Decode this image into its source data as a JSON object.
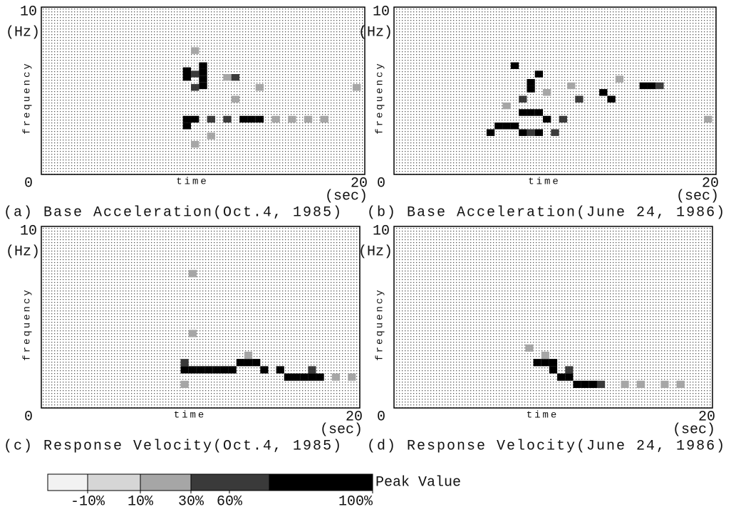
{
  "chart_data": [
    {
      "type": "heatmap",
      "caption": "(a) Base Acceleration(Oct.4, 1985)",
      "y_label": "frequency",
      "y_unit": "(Hz)",
      "x_label": "time",
      "x_unit": "(sec)",
      "xlim": [
        0,
        20
      ],
      "ylim": [
        0,
        10
      ],
      "xticks": [
        0,
        20
      ],
      "yticks": [
        10
      ],
      "x": [
        9.0,
        9.0,
        9.5,
        10.0,
        10.0,
        10.0,
        10.0,
        9.5,
        9.5,
        9.0,
        9.5,
        9.0,
        10.5,
        11.5,
        12.5,
        13.0,
        13.5,
        14.5,
        15.5,
        16.5,
        17.5,
        11.5,
        12.0,
        13.5,
        19.5,
        10.5,
        9.5,
        12.0
      ],
      "y": [
        6.2,
        5.8,
        6.0,
        6.5,
        6.1,
        5.7,
        5.3,
        5.2,
        7.4,
        3.3,
        3.3,
        2.9,
        3.3,
        3.3,
        3.3,
        3.3,
        3.3,
        3.3,
        3.3,
        3.3,
        3.3,
        5.8,
        5.8,
        5.2,
        5.2,
        2.3,
        1.8,
        4.5
      ],
      "values": [
        80,
        80,
        45,
        100,
        100,
        100,
        100,
        45,
        20,
        100,
        100,
        80,
        45,
        45,
        80,
        100,
        100,
        20,
        20,
        20,
        20,
        20,
        45,
        20,
        20,
        20,
        20,
        20
      ]
    },
    {
      "type": "heatmap",
      "caption": "(b) Base Acceleration(June 24, 1986)",
      "y_label": "frequency",
      "y_unit": "(Hz)",
      "x_label": "time",
      "x_unit": "(sec)",
      "xlim": [
        0,
        20
      ],
      "ylim": [
        0,
        10
      ],
      "xticks": [
        0,
        20
      ],
      "yticks": [
        10
      ],
      "x": [
        7.5,
        9.0,
        8.5,
        8.5,
        8.0,
        8.5,
        9.0,
        6.5,
        7.0,
        7.5,
        8.0,
        8.5,
        9.0,
        6.0,
        9.5,
        10.5,
        11.5,
        13.0,
        13.5,
        15.5,
        16.0,
        8.0,
        9.5,
        7.0,
        11.0,
        14.0,
        16.5,
        19.5,
        10.0
      ],
      "y": [
        6.5,
        6.0,
        5.5,
        5.1,
        3.7,
        3.7,
        3.7,
        2.9,
        2.9,
        2.9,
        2.5,
        2.5,
        2.5,
        2.5,
        3.3,
        3.3,
        4.5,
        4.9,
        4.5,
        5.3,
        5.3,
        4.5,
        4.9,
        4.1,
        5.3,
        5.7,
        5.3,
        3.3,
        2.5
      ],
      "values": [
        80,
        100,
        100,
        100,
        100,
        80,
        100,
        100,
        100,
        80,
        100,
        45,
        100,
        100,
        100,
        45,
        45,
        100,
        100,
        100,
        100,
        45,
        20,
        20,
        20,
        20,
        45,
        20,
        45
      ]
    },
    {
      "type": "heatmap",
      "caption": "(c) Response Velocity(Oct.4, 1985)",
      "y_label": "frequency",
      "y_unit": "(Hz)",
      "x_label": "time",
      "x_unit": "(sec)",
      "xlim": [
        0,
        20
      ],
      "ylim": [
        0,
        10
      ],
      "xticks": [
        0,
        20
      ],
      "yticks": [
        10
      ],
      "x": [
        9.5,
        9.5,
        9.0,
        9.5,
        10.0,
        10.5,
        11.0,
        11.5,
        12.0,
        12.5,
        13.0,
        13.5,
        14.0,
        15.0,
        15.5,
        16.0,
        16.5,
        17.0,
        17.5,
        18.5,
        19.5,
        9.0,
        9.0,
        13.0,
        17.0
      ],
      "y": [
        7.4,
        4.1,
        2.1,
        2.1,
        2.1,
        2.1,
        2.1,
        2.1,
        2.1,
        2.5,
        2.5,
        2.5,
        2.1,
        2.1,
        1.7,
        1.7,
        1.7,
        1.7,
        1.7,
        1.7,
        1.7,
        2.5,
        1.3,
        2.9,
        2.1
      ],
      "values": [
        20,
        20,
        100,
        100,
        100,
        100,
        100,
        100,
        80,
        100,
        100,
        100,
        80,
        100,
        100,
        100,
        100,
        100,
        80,
        20,
        20,
        45,
        20,
        20,
        45
      ]
    },
    {
      "type": "heatmap",
      "caption": "(d) Response Velocity(June 24, 1986)",
      "y_label": "frequency",
      "y_unit": "(Hz)",
      "x_label": "time",
      "x_unit": "(sec)",
      "xlim": [
        0,
        20
      ],
      "ylim": [
        0,
        10
      ],
      "xticks": [
        0,
        20
      ],
      "yticks": [
        10
      ],
      "x": [
        8.5,
        9.0,
        9.5,
        10.0,
        10.0,
        10.5,
        11.0,
        11.5,
        12.0,
        12.5,
        13.0,
        9.5,
        14.5,
        15.5,
        17.0,
        18.0,
        11.0
      ],
      "y": [
        3.3,
        2.5,
        2.5,
        2.1,
        2.5,
        1.7,
        1.7,
        1.3,
        1.3,
        1.3,
        1.3,
        2.9,
        1.3,
        1.3,
        1.3,
        1.3,
        2.1
      ],
      "values": [
        20,
        100,
        100,
        80,
        100,
        100,
        100,
        100,
        100,
        80,
        45,
        20,
        20,
        20,
        20,
        20,
        45
      ]
    }
  ],
  "colorbar": {
    "label": "Peak Value",
    "ticks": [
      {
        "value": -10,
        "label": "-10%"
      },
      {
        "value": 10,
        "label": "10%"
      },
      {
        "value": 30,
        "label": "30%"
      },
      {
        "value": 60,
        "label": "60%"
      },
      {
        "value": 100,
        "label": "100%"
      }
    ],
    "colors": [
      "#f2f2f2",
      "#d6d6d6",
      "#a6a6a6",
      "#3a3a3a",
      "#000000"
    ]
  }
}
